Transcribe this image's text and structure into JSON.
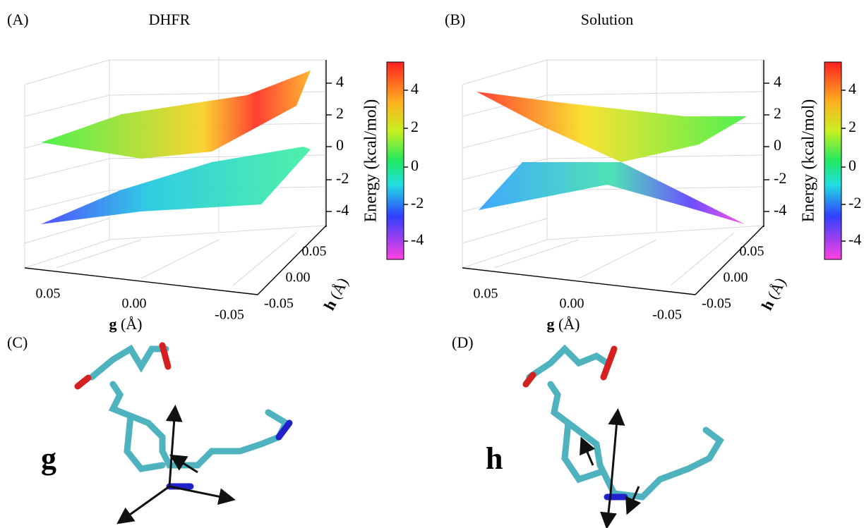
{
  "panels": [
    {
      "label": "(A)",
      "title": "DHFR",
      "z_ticks": [
        4,
        2,
        0,
        -2,
        -4
      ],
      "colorbar": {
        "label": "Energy (kcal/mol)",
        "ticks": [
          4,
          2,
          0,
          -2,
          -4
        ]
      },
      "x_axis": {
        "symbol": "g",
        "unit": "(Å)",
        "ticks": [
          "0.05",
          "0.00",
          "-0.05"
        ]
      },
      "y_axis": {
        "symbol": "h",
        "unit": "(Å)",
        "ticks": [
          "0.05",
          "0.00",
          "-0.05"
        ]
      }
    },
    {
      "label": "(B)",
      "title": "Solution",
      "z_ticks": [
        4,
        2,
        0,
        -2,
        -4
      ],
      "colorbar": {
        "label": "Energy (kcal/mol)",
        "ticks": [
          4,
          2,
          0,
          -2,
          -4
        ]
      },
      "x_axis": {
        "symbol": "g",
        "unit": "(Å)",
        "ticks": [
          "0.05",
          "0.00",
          "-0.05"
        ]
      },
      "y_axis": {
        "symbol": "h",
        "unit": "(Å)",
        "ticks": [
          "0.05",
          "0.00",
          "-0.05"
        ]
      }
    }
  ],
  "structures": [
    {
      "label": "(C)",
      "vector": "g"
    },
    {
      "label": "(D)",
      "vector": "h"
    }
  ]
}
